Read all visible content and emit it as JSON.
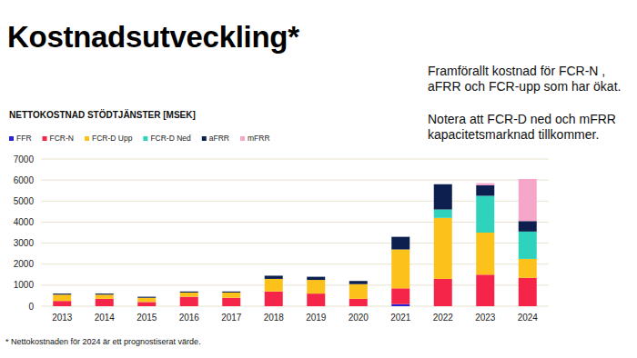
{
  "chart_data": {
    "type": "bar",
    "title": "Kostnadsutveckling*",
    "subtitle": "NETTOKOSTNAD STÖDTJÄNSTER [MSEK]",
    "annotations": [
      "Framförallt kostnad för FCR-N , aFRR och FCR-upp som har ökat.",
      "Notera att FCR-D ned och mFRR kapacitetsmarknad tillkommer."
    ],
    "footnote": "* Nettokostnaden för 2024 är ett prognostiserat värde.",
    "categories": [
      "2013",
      "2014",
      "2015",
      "2016",
      "2017",
      "2018",
      "2019",
      "2020",
      "2021",
      "2022",
      "2023",
      "2024"
    ],
    "series": [
      {
        "name": "FFR",
        "color": "#2a22d6",
        "values": [
          0,
          0,
          0,
          0,
          0,
          0,
          0,
          0,
          100,
          0,
          0,
          0
        ]
      },
      {
        "name": "FCR-N",
        "color": "#f5254a",
        "values": [
          250,
          350,
          200,
          450,
          400,
          700,
          600,
          350,
          750,
          1300,
          1500,
          1350
        ]
      },
      {
        "name": "FCR-D Upp",
        "color": "#fcc21b",
        "values": [
          300,
          200,
          200,
          200,
          250,
          600,
          650,
          700,
          1850,
          2900,
          2000,
          900
        ]
      },
      {
        "name": "FCR-D Ned",
        "color": "#2fd3bd",
        "values": [
          0,
          0,
          0,
          0,
          0,
          0,
          0,
          0,
          0,
          400,
          1750,
          1300
        ]
      },
      {
        "name": "aFRR",
        "color": "#0c1f4f",
        "values": [
          50,
          50,
          50,
          50,
          50,
          150,
          150,
          150,
          600,
          1200,
          500,
          500
        ]
      },
      {
        "name": "mFRR",
        "color": "#f6a6c8",
        "values": [
          0,
          0,
          0,
          0,
          0,
          0,
          0,
          0,
          0,
          0,
          100,
          2000
        ]
      }
    ],
    "ylim": [
      0,
      7000
    ],
    "yticks": [
      0,
      1000,
      2000,
      3000,
      4000,
      5000,
      6000,
      7000
    ],
    "stacked": true,
    "grid": true,
    "legend": "top-left"
  }
}
